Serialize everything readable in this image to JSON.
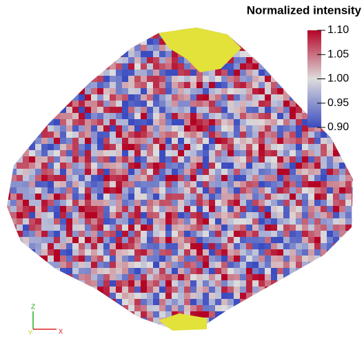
{
  "colorbar": {
    "title": "Normalized intensity",
    "lim": [
      0.9,
      1.1
    ],
    "ticks": [
      {
        "value": 1.1,
        "label": "1.10"
      },
      {
        "value": 1.05,
        "label": "1.05"
      },
      {
        "value": 1,
        "label": "1.00"
      },
      {
        "value": 0.95,
        "label": "0.95"
      },
      {
        "value": 0.9,
        "label": "0.90"
      }
    ],
    "colors": [
      "#3b4cc0",
      "#dddddd",
      "#b40426"
    ]
  },
  "axes_triad": {
    "labels": [
      "Z",
      "Y",
      "X"
    ]
  }
}
